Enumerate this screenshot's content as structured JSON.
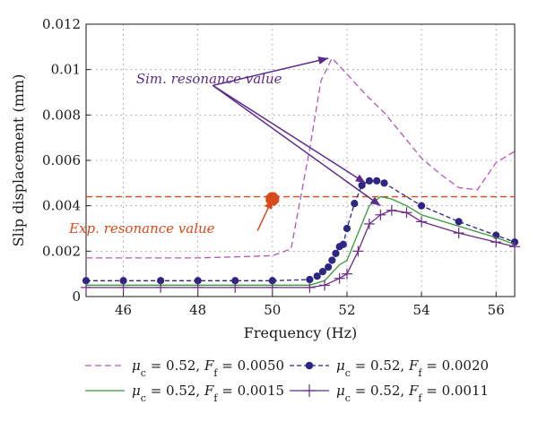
{
  "chart_data": {
    "type": "line",
    "title": "",
    "xlabel": "Frequency (Hz)",
    "ylabel": "Slip displacement (mm)",
    "xlim": [
      45,
      56.5
    ],
    "ylim": [
      0,
      0.012
    ],
    "xticks": [
      "46",
      "48",
      "50",
      "52",
      "54",
      "56"
    ],
    "yticks": [
      "0",
      "0.002",
      "0.004",
      "0.006",
      "0.008",
      "0.01",
      "0.012"
    ],
    "grid": "dotted",
    "legend_position": "below plot",
    "series": [
      {
        "name": "μc = 0.52, Ff = 0.0050",
        "label_mu": "μ",
        "label_mu_sub": "c",
        "label_eq1": " = 0.52, ",
        "label_F": "F",
        "label_F_sub": "f",
        "label_eq2": " = 0.0050",
        "color": "#b455b6",
        "style": "dashed",
        "x": [
          45,
          46,
          47,
          48,
          49,
          50,
          50.5,
          51.0,
          51.3,
          51.6,
          52.0,
          52.5,
          53.0,
          53.5,
          54.0,
          54.5,
          55.0,
          55.5,
          56.0,
          56.5
        ],
        "y": [
          0.0017,
          0.0017,
          0.0017,
          0.0017,
          0.00175,
          0.0018,
          0.0021,
          0.0065,
          0.0095,
          0.0105,
          0.0098,
          0.0089,
          0.0081,
          0.0071,
          0.0061,
          0.0054,
          0.0048,
          0.0047,
          0.0059,
          0.0064
        ]
      },
      {
        "name": "μc = 0.52, Ff = 0.0020",
        "label_mu": "μ",
        "label_mu_sub": "c",
        "label_eq1": " = 0.52, ",
        "label_F": "F",
        "label_F_sub": "f",
        "label_eq2": " = 0.0020",
        "color": "#2d2683",
        "style": "dashed",
        "marker": "circle",
        "x": [
          45,
          46,
          47,
          48,
          49,
          50,
          51,
          51.2,
          51.35,
          51.5,
          51.6,
          51.7,
          51.8,
          51.9,
          52.0,
          52.2,
          52.4,
          52.6,
          52.8,
          53.0,
          54.0,
          55.0,
          56.0,
          56.5
        ],
        "y": [
          0.0007,
          0.0007,
          0.0007,
          0.0007,
          0.0007,
          0.0007,
          0.00075,
          0.0009,
          0.0011,
          0.0013,
          0.0016,
          0.0019,
          0.0022,
          0.0023,
          0.003,
          0.0041,
          0.0049,
          0.0051,
          0.0051,
          0.005,
          0.004,
          0.0033,
          0.0027,
          0.0024
        ]
      },
      {
        "name": "μc = 0.52, Ff = 0.0015",
        "label_mu": "μ",
        "label_mu_sub": "c",
        "label_eq1": " = 0.52, ",
        "label_F": "F",
        "label_F_sub": "f",
        "label_eq2": " = 0.0015",
        "color": "#3a9a3a",
        "style": "solid",
        "x": [
          45,
          46,
          47,
          48,
          49,
          50,
          51,
          51.4,
          51.8,
          52.0,
          52.3,
          52.6,
          52.9,
          53.2,
          53.6,
          54.0,
          55.0,
          56.0,
          56.5
        ],
        "y": [
          0.0005,
          0.0005,
          0.0005,
          0.0005,
          0.0005,
          0.0005,
          0.0005,
          0.0007,
          0.0014,
          0.0016,
          0.0028,
          0.004,
          0.0044,
          0.0043,
          0.004,
          0.0036,
          0.0031,
          0.0026,
          0.0023
        ]
      },
      {
        "name": "μc = 0.52, Ff = 0.0011",
        "label_mu": "μ",
        "label_mu_sub": "c",
        "label_eq1": " = 0.52, ",
        "label_F": "F",
        "label_F_sub": "f",
        "label_eq2": " = 0.0011",
        "color": "#6b2a86",
        "style": "solid",
        "marker": "plus",
        "x": [
          45,
          46,
          47,
          48,
          49,
          50,
          51,
          51.4,
          51.8,
          52.0,
          52.3,
          52.6,
          52.9,
          53.2,
          53.6,
          54.0,
          55.0,
          56.0,
          56.5
        ],
        "y": [
          0.0004,
          0.0004,
          0.0004,
          0.0004,
          0.0004,
          0.0004,
          0.0004,
          0.0005,
          0.0008,
          0.001,
          0.002,
          0.0032,
          0.0036,
          0.0038,
          0.0037,
          0.0033,
          0.0028,
          0.0024,
          0.0022
        ]
      }
    ],
    "reference_line": {
      "name": "Exp. resonance value",
      "y": 0.0044,
      "color": "#d84a1b",
      "style": "dashed"
    },
    "annotations": [
      {
        "text": "Sim. resonance value",
        "color": "#5c2c8c",
        "anchor": [
          48.3,
          0.0094
        ]
      },
      {
        "text": "Exp. resonance value",
        "color": "#d84a1b",
        "anchor": [
          46.5,
          0.0028
        ]
      }
    ],
    "exp_point": {
      "x": 50,
      "y": 0.0043,
      "color": "#d84a1b"
    },
    "arrows": [
      {
        "from": [
          48.4,
          0.0093
        ],
        "to": [
          51.5,
          0.0105
        ],
        "color": "#5c2c8c"
      },
      {
        "from": [
          48.4,
          0.0093
        ],
        "to": [
          52.5,
          0.005
        ],
        "color": "#5c2c8c"
      },
      {
        "from": [
          48.4,
          0.0093
        ],
        "to": [
          52.9,
          0.004
        ],
        "color": "#5c2c8c"
      },
      {
        "from": [
          49.6,
          0.0029
        ],
        "to": [
          50.0,
          0.0043
        ],
        "color": "#d84a1b"
      }
    ]
  }
}
